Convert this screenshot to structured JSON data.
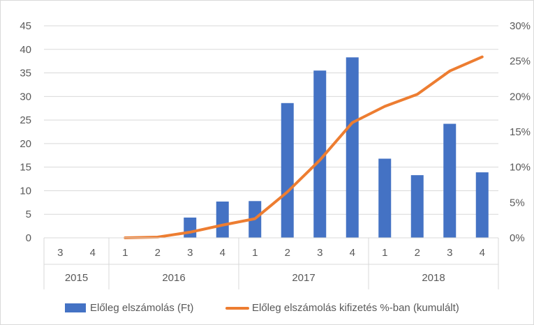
{
  "chart_data": {
    "type": "bar+line",
    "categories": [
      {
        "quarter": "3",
        "year": "2015"
      },
      {
        "quarter": "4",
        "year": "2015"
      },
      {
        "quarter": "1",
        "year": "2016"
      },
      {
        "quarter": "2",
        "year": "2016"
      },
      {
        "quarter": "3",
        "year": "2016"
      },
      {
        "quarter": "4",
        "year": "2016"
      },
      {
        "quarter": "1",
        "year": "2017"
      },
      {
        "quarter": "2",
        "year": "2017"
      },
      {
        "quarter": "3",
        "year": "2017"
      },
      {
        "quarter": "4",
        "year": "2017"
      },
      {
        "quarter": "1",
        "year": "2018"
      },
      {
        "quarter": "2",
        "year": "2018"
      },
      {
        "quarter": "3",
        "year": "2018"
      },
      {
        "quarter": "4",
        "year": "2018"
      }
    ],
    "year_groups": [
      {
        "label": "2015",
        "start": 0,
        "end": 1
      },
      {
        "label": "2016",
        "start": 2,
        "end": 5
      },
      {
        "label": "2017",
        "start": 6,
        "end": 9
      },
      {
        "label": "2018",
        "start": 10,
        "end": 13
      }
    ],
    "series": [
      {
        "name": "Előleg elszámolás (Ft)",
        "type": "bar",
        "axis": "left",
        "color": "#4472c4",
        "values": [
          null,
          null,
          null,
          null,
          4.3,
          7.7,
          7.8,
          28.6,
          35.5,
          38.3,
          16.8,
          13.3,
          24.2,
          13.9
        ]
      },
      {
        "name": "Előleg elszámolás kifizetés %-ban (kumulált)",
        "type": "line",
        "axis": "right",
        "color": "#ed7d31",
        "values": [
          null,
          null,
          0.0,
          0.1,
          0.8,
          1.8,
          2.7,
          6.5,
          11.0,
          16.3,
          18.6,
          20.3,
          23.6,
          25.6
        ]
      }
    ],
    "y_left": {
      "min": 0,
      "max": 45,
      "step": 5,
      "ticks": [
        "0",
        "5",
        "10",
        "15",
        "20",
        "25",
        "30",
        "35",
        "40",
        "45"
      ]
    },
    "y_right": {
      "min": 0,
      "max": 30,
      "step": 5,
      "ticks": [
        "0%",
        "5%",
        "10%",
        "15%",
        "20%",
        "25%",
        "30%"
      ]
    },
    "grid": true,
    "legend_position": "bottom"
  }
}
